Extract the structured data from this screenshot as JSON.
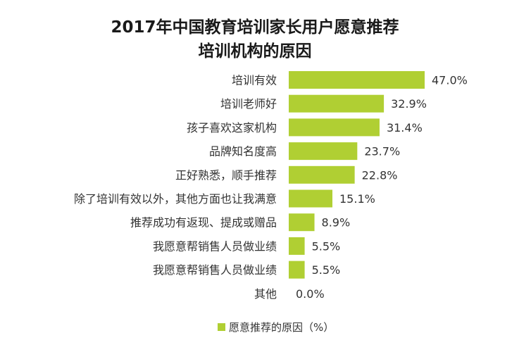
{
  "chart_data": {
    "type": "bar",
    "orientation": "horizontal",
    "title": "2017年中国教育培训家长用户愿意推荐培训机构的原因",
    "title_lines": [
      "2017年中国教育培训家长用户愿意推荐",
      "培训机构的原因"
    ],
    "categories": [
      "培训有效",
      "培训老师好",
      "孩子喜欢这家机构",
      "品牌知名度高",
      "正好熟悉，顺手推荐",
      "除了培训有效以外，其他方面也让我满意",
      "推荐成功有返现、提成或赠品",
      "我愿意帮销售人员做业绩",
      "我愿意帮销售人员做业绩",
      "其他"
    ],
    "series": [
      {
        "name": "愿意推荐的原因（%）",
        "values": [
          47.0,
          32.9,
          31.4,
          23.7,
          22.8,
          15.1,
          8.9,
          5.5,
          5.5,
          0.0
        ],
        "value_labels": [
          "47.0%",
          "32.9%",
          "31.4%",
          "23.7%",
          "22.8%",
          "15.1%",
          "8.9%",
          "5.5%",
          "5.5%",
          "0.0%"
        ]
      }
    ],
    "xlim": [
      0,
      47.0
    ],
    "grid": false,
    "legend_position": "bottom-center",
    "colors": {
      "bar": "#b0cf33",
      "text": "#333333",
      "title": "#1a1a1a"
    }
  }
}
